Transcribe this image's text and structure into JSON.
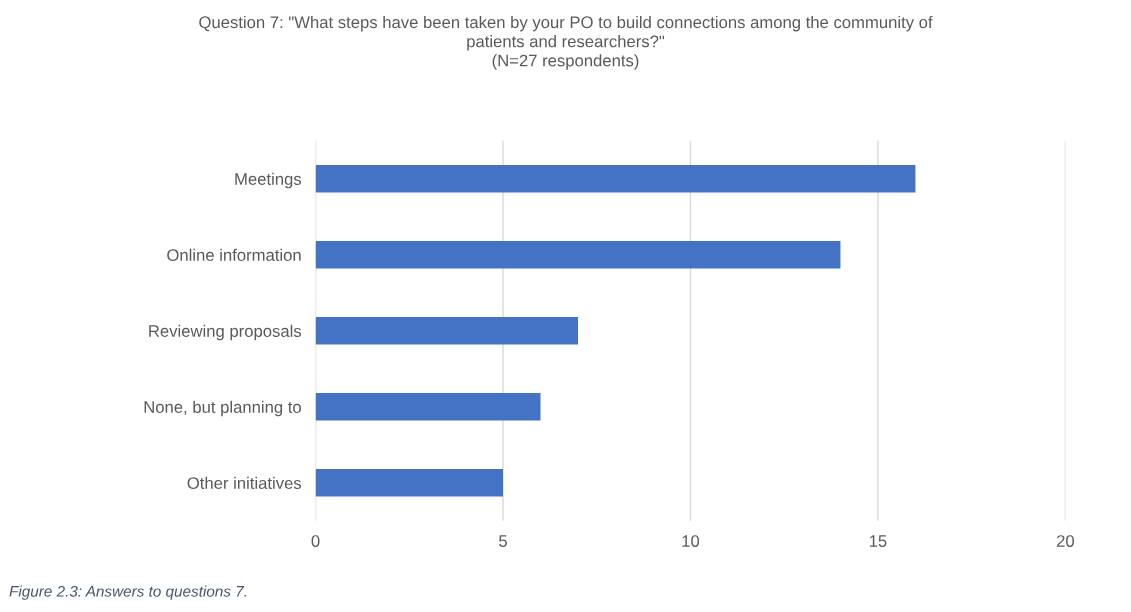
{
  "chart_data": {
    "type": "bar",
    "orientation": "horizontal",
    "title": "Question 7: \"What steps have been taken by your PO to build connections among the community of\npatients and researchers?\"\n(N=27 respondents)",
    "categories": [
      "Meetings",
      "Online information",
      "Reviewing proposals",
      "None, but planning to",
      "Other initiatives"
    ],
    "values": [
      16,
      14,
      7,
      6,
      5
    ],
    "color": "#4472c4",
    "xlim": [
      0,
      20
    ],
    "xticks": [
      0,
      5,
      10,
      15,
      20
    ],
    "grid": "x",
    "legend": false,
    "annotations": [
      "Figure 2.3: Answers to questions 7."
    ]
  }
}
